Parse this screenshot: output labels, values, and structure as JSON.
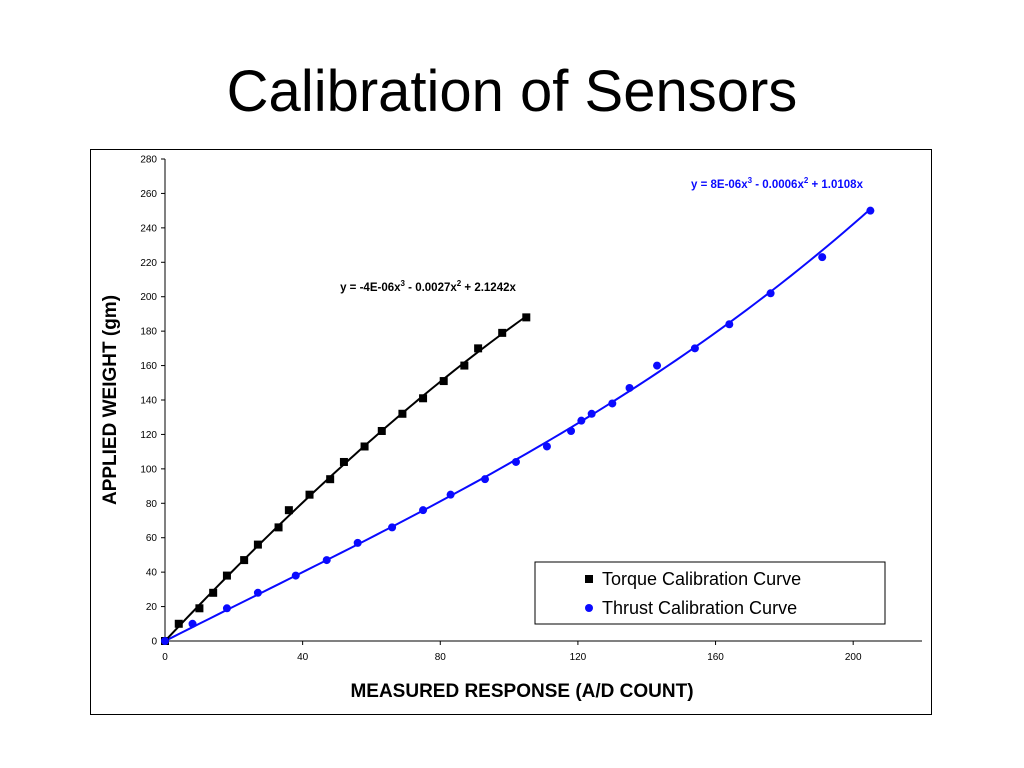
{
  "slide": {
    "title": "Calibration of Sensors"
  },
  "chart_data": {
    "type": "scatter",
    "xlabel": "MEASURED RESPONSE (A/D COUNT)",
    "ylabel": "APPLIED WEIGHT (gm)",
    "xlim": [
      0,
      220
    ],
    "ylim": [
      0,
      280
    ],
    "xticks": [
      0,
      40,
      80,
      120,
      160,
      200
    ],
    "yticks": [
      0,
      20,
      40,
      60,
      80,
      100,
      120,
      140,
      160,
      180,
      200,
      220,
      240,
      260,
      280
    ],
    "grid": false,
    "legend_position": "bottom-right",
    "series": [
      {
        "name": "Torque Calibration Curve",
        "marker": "square",
        "color": "#000000",
        "x": [
          0,
          4,
          10,
          14,
          18,
          23,
          27,
          33,
          36,
          42,
          48,
          52,
          58,
          63,
          69,
          75,
          81,
          87,
          91,
          98,
          105
        ],
        "y": [
          0,
          10,
          19,
          28,
          38,
          47,
          56,
          66,
          76,
          85,
          94,
          104,
          113,
          122,
          132,
          141,
          151,
          160,
          170,
          179,
          188
        ],
        "trendline": {
          "equation_parts": [
            "y = -4E-06x",
            "3",
            " - 0.0027x",
            "2",
            " + 2.1242x"
          ],
          "coefficients": {
            "a3": -4e-06,
            "a2": -0.0027,
            "a1": 2.1242
          },
          "x_range": [
            0,
            105
          ]
        }
      },
      {
        "name": "Thrust Calibration Curve",
        "marker": "circle",
        "color": "#0a0aff",
        "x": [
          0,
          8,
          18,
          27,
          38,
          47,
          56,
          66,
          75,
          83,
          93,
          102,
          111,
          118,
          121,
          124,
          130,
          135,
          143,
          154,
          164,
          176,
          191,
          205
        ],
        "y": [
          0,
          10,
          19,
          28,
          38,
          47,
          57,
          66,
          76,
          85,
          94,
          104,
          113,
          122,
          128,
          132,
          138,
          147,
          160,
          170,
          184,
          202,
          223,
          250
        ],
        "trendline": {
          "equation_parts": [
            "y = 8E-06x",
            "3",
            " - 0.0006x",
            "2",
            " + 1.0108x"
          ],
          "coefficients": {
            "a3": 8e-06,
            "a2": -0.0006,
            "a1": 1.0108
          },
          "x_range": [
            0,
            205
          ]
        }
      }
    ]
  }
}
